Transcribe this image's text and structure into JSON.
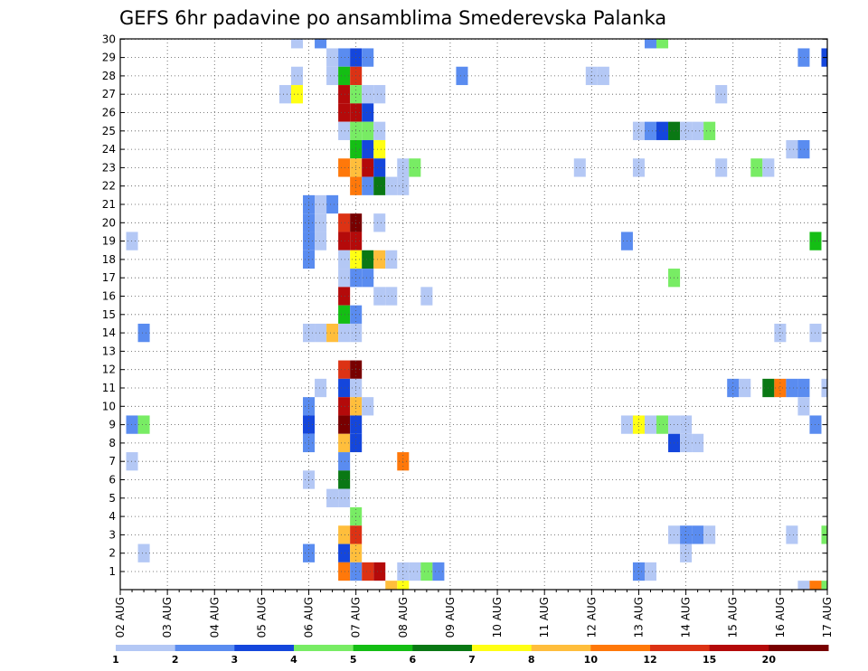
{
  "chart_data": {
    "type": "heatmap",
    "title": "GEFS 6hr padavine po ansamblima Smederevska Palanka",
    "x_tick_labels": [
      "02 AUG",
      "03 AUG",
      "04 AUG",
      "05 AUG",
      "06 AUG",
      "07 AUG",
      "08 AUG",
      "09 AUG",
      "10 AUG",
      "11 AUG",
      "12 AUG",
      "13 AUG",
      "14 AUG",
      "15 AUG",
      "16 AUG",
      "17 AUG"
    ],
    "y_tick_labels": [
      "1",
      "2",
      "3",
      "4",
      "5",
      "6",
      "7",
      "8",
      "9",
      "10",
      "11",
      "12",
      "13",
      "14",
      "15",
      "16",
      "17",
      "18",
      "19",
      "20",
      "21",
      "22",
      "23",
      "24",
      "25",
      "26",
      "27",
      "28",
      "29",
      "30"
    ],
    "xlim": [
      0,
      60
    ],
    "ylim": [
      0,
      30
    ],
    "steps_per_day": 4,
    "grid": true,
    "colorbar": {
      "position": "bottom",
      "labels": [
        "1",
        "2",
        "3",
        "4",
        "5",
        "6",
        "7",
        "8",
        "10",
        "12",
        "15",
        "20"
      ],
      "colors": [
        "#b4c8f5",
        "#5a8cf0",
        "#1446dc",
        "#78ec64",
        "#14be14",
        "#0a7814",
        "#ffff14",
        "#ffbe3c",
        "#ff780a",
        "#dc3214",
        "#b40a0a",
        "#780000"
      ]
    },
    "cells_note": "x = 6-hour step index from 02 AUG 00Z, y = ensemble member (0 = control row), c = colour class index",
    "cells": [
      {
        "x": 15,
        "y": 30,
        "c": 0
      },
      {
        "x": 17,
        "y": 30,
        "c": 1
      },
      {
        "x": 45,
        "y": 30,
        "c": 1
      },
      {
        "x": 46,
        "y": 30,
        "c": 3
      },
      {
        "x": 18,
        "y": 29,
        "c": 0
      },
      {
        "x": 19,
        "y": 29,
        "c": 1
      },
      {
        "x": 20,
        "y": 29,
        "c": 2
      },
      {
        "x": 21,
        "y": 29,
        "c": 1
      },
      {
        "x": 58,
        "y": 29,
        "c": 1
      },
      {
        "x": 60,
        "y": 29,
        "c": 2
      },
      {
        "x": 15,
        "y": 28,
        "c": 0
      },
      {
        "x": 18,
        "y": 28,
        "c": 0
      },
      {
        "x": 19,
        "y": 28,
        "c": 4
      },
      {
        "x": 20,
        "y": 28,
        "c": 9
      },
      {
        "x": 29,
        "y": 28,
        "c": 1
      },
      {
        "x": 40,
        "y": 28,
        "c": 0
      },
      {
        "x": 41,
        "y": 28,
        "c": 0
      },
      {
        "x": 14,
        "y": 27,
        "c": 0
      },
      {
        "x": 15,
        "y": 27,
        "c": 6
      },
      {
        "x": 19,
        "y": 27,
        "c": 10
      },
      {
        "x": 20,
        "y": 27,
        "c": 3
      },
      {
        "x": 21,
        "y": 27,
        "c": 0
      },
      {
        "x": 22,
        "y": 27,
        "c": 0
      },
      {
        "x": 51,
        "y": 27,
        "c": 0
      },
      {
        "x": 19,
        "y": 26,
        "c": 10
      },
      {
        "x": 20,
        "y": 26,
        "c": 10
      },
      {
        "x": 21,
        "y": 26,
        "c": 2
      },
      {
        "x": 19,
        "y": 25,
        "c": 0
      },
      {
        "x": 20,
        "y": 25,
        "c": 3
      },
      {
        "x": 21,
        "y": 25,
        "c": 3
      },
      {
        "x": 22,
        "y": 25,
        "c": 0
      },
      {
        "x": 44,
        "y": 25,
        "c": 0
      },
      {
        "x": 45,
        "y": 25,
        "c": 1
      },
      {
        "x": 46,
        "y": 25,
        "c": 2
      },
      {
        "x": 47,
        "y": 25,
        "c": 5
      },
      {
        "x": 48,
        "y": 25,
        "c": 0
      },
      {
        "x": 49,
        "y": 25,
        "c": 0
      },
      {
        "x": 50,
        "y": 25,
        "c": 3
      },
      {
        "x": 20,
        "y": 24,
        "c": 4
      },
      {
        "x": 21,
        "y": 24,
        "c": 2
      },
      {
        "x": 22,
        "y": 24,
        "c": 6
      },
      {
        "x": 57,
        "y": 24,
        "c": 0
      },
      {
        "x": 58,
        "y": 24,
        "c": 1
      },
      {
        "x": 19,
        "y": 23,
        "c": 8
      },
      {
        "x": 20,
        "y": 23,
        "c": 7
      },
      {
        "x": 21,
        "y": 23,
        "c": 10
      },
      {
        "x": 22,
        "y": 23,
        "c": 2
      },
      {
        "x": 24,
        "y": 23,
        "c": 0
      },
      {
        "x": 25,
        "y": 23,
        "c": 3
      },
      {
        "x": 39,
        "y": 23,
        "c": 0
      },
      {
        "x": 44,
        "y": 23,
        "c": 0
      },
      {
        "x": 51,
        "y": 23,
        "c": 0
      },
      {
        "x": 54,
        "y": 23,
        "c": 3
      },
      {
        "x": 55,
        "y": 23,
        "c": 0
      },
      {
        "x": 20,
        "y": 22,
        "c": 8
      },
      {
        "x": 21,
        "y": 22,
        "c": 1
      },
      {
        "x": 22,
        "y": 22,
        "c": 5
      },
      {
        "x": 23,
        "y": 22,
        "c": 0
      },
      {
        "x": 24,
        "y": 22,
        "c": 0
      },
      {
        "x": 16,
        "y": 21,
        "c": 1
      },
      {
        "x": 17,
        "y": 21,
        "c": 0
      },
      {
        "x": 18,
        "y": 21,
        "c": 1
      },
      {
        "x": 16,
        "y": 20,
        "c": 1
      },
      {
        "x": 17,
        "y": 20,
        "c": 0
      },
      {
        "x": 19,
        "y": 20,
        "c": 9
      },
      {
        "x": 20,
        "y": 20,
        "c": 11
      },
      {
        "x": 22,
        "y": 20,
        "c": 0
      },
      {
        "x": 1,
        "y": 19,
        "c": 0
      },
      {
        "x": 16,
        "y": 19,
        "c": 1
      },
      {
        "x": 17,
        "y": 19,
        "c": 0
      },
      {
        "x": 19,
        "y": 19,
        "c": 10
      },
      {
        "x": 20,
        "y": 19,
        "c": 10
      },
      {
        "x": 43,
        "y": 19,
        "c": 1
      },
      {
        "x": 59,
        "y": 19,
        "c": 4
      },
      {
        "x": 16,
        "y": 18,
        "c": 1
      },
      {
        "x": 19,
        "y": 18,
        "c": 0
      },
      {
        "x": 20,
        "y": 18,
        "c": 6
      },
      {
        "x": 21,
        "y": 18,
        "c": 5
      },
      {
        "x": 22,
        "y": 18,
        "c": 7
      },
      {
        "x": 23,
        "y": 18,
        "c": 0
      },
      {
        "x": 19,
        "y": 17,
        "c": 0
      },
      {
        "x": 20,
        "y": 17,
        "c": 1
      },
      {
        "x": 21,
        "y": 17,
        "c": 1
      },
      {
        "x": 47,
        "y": 17,
        "c": 3
      },
      {
        "x": 19,
        "y": 16,
        "c": 10
      },
      {
        "x": 22,
        "y": 16,
        "c": 0
      },
      {
        "x": 23,
        "y": 16,
        "c": 0
      },
      {
        "x": 26,
        "y": 16,
        "c": 0
      },
      {
        "x": 19,
        "y": 15,
        "c": 4
      },
      {
        "x": 20,
        "y": 15,
        "c": 1
      },
      {
        "x": 2,
        "y": 14,
        "c": 1
      },
      {
        "x": 16,
        "y": 14,
        "c": 0
      },
      {
        "x": 17,
        "y": 14,
        "c": 0
      },
      {
        "x": 18,
        "y": 14,
        "c": 7
      },
      {
        "x": 19,
        "y": 14,
        "c": 0
      },
      {
        "x": 20,
        "y": 14,
        "c": 0
      },
      {
        "x": 56,
        "y": 14,
        "c": 0
      },
      {
        "x": 59,
        "y": 14,
        "c": 0
      },
      {
        "x": 19,
        "y": 12,
        "c": 9
      },
      {
        "x": 20,
        "y": 12,
        "c": 11
      },
      {
        "x": 17,
        "y": 11,
        "c": 0
      },
      {
        "x": 19,
        "y": 11,
        "c": 2
      },
      {
        "x": 20,
        "y": 11,
        "c": 0
      },
      {
        "x": 52,
        "y": 11,
        "c": 1
      },
      {
        "x": 53,
        "y": 11,
        "c": 0
      },
      {
        "x": 55,
        "y": 11,
        "c": 5
      },
      {
        "x": 56,
        "y": 11,
        "c": 8
      },
      {
        "x": 57,
        "y": 11,
        "c": 1
      },
      {
        "x": 58,
        "y": 11,
        "c": 1
      },
      {
        "x": 60,
        "y": 11,
        "c": 0
      },
      {
        "x": 16,
        "y": 10,
        "c": 1
      },
      {
        "x": 19,
        "y": 10,
        "c": 10
      },
      {
        "x": 20,
        "y": 10,
        "c": 7
      },
      {
        "x": 21,
        "y": 10,
        "c": 0
      },
      {
        "x": 58,
        "y": 10,
        "c": 0
      },
      {
        "x": 1,
        "y": 9,
        "c": 1
      },
      {
        "x": 2,
        "y": 9,
        "c": 3
      },
      {
        "x": 16,
        "y": 9,
        "c": 2
      },
      {
        "x": 19,
        "y": 9,
        "c": 11
      },
      {
        "x": 20,
        "y": 9,
        "c": 2
      },
      {
        "x": 43,
        "y": 9,
        "c": 0
      },
      {
        "x": 44,
        "y": 9,
        "c": 6
      },
      {
        "x": 45,
        "y": 9,
        "c": 0
      },
      {
        "x": 46,
        "y": 9,
        "c": 3
      },
      {
        "x": 47,
        "y": 9,
        "c": 0
      },
      {
        "x": 48,
        "y": 9,
        "c": 0
      },
      {
        "x": 59,
        "y": 9,
        "c": 1
      },
      {
        "x": 16,
        "y": 8,
        "c": 1
      },
      {
        "x": 19,
        "y": 8,
        "c": 7
      },
      {
        "x": 20,
        "y": 8,
        "c": 2
      },
      {
        "x": 47,
        "y": 8,
        "c": 2
      },
      {
        "x": 48,
        "y": 8,
        "c": 0
      },
      {
        "x": 49,
        "y": 8,
        "c": 0
      },
      {
        "x": 1,
        "y": 7,
        "c": 0
      },
      {
        "x": 19,
        "y": 7,
        "c": 1
      },
      {
        "x": 24,
        "y": 7,
        "c": 8
      },
      {
        "x": 16,
        "y": 6,
        "c": 0
      },
      {
        "x": 19,
        "y": 6,
        "c": 5
      },
      {
        "x": 18,
        "y": 5,
        "c": 0
      },
      {
        "x": 19,
        "y": 5,
        "c": 0
      },
      {
        "x": 20,
        "y": 4,
        "c": 3
      },
      {
        "x": 19,
        "y": 3,
        "c": 7
      },
      {
        "x": 20,
        "y": 3,
        "c": 9
      },
      {
        "x": 47,
        "y": 3,
        "c": 0
      },
      {
        "x": 48,
        "y": 3,
        "c": 1
      },
      {
        "x": 49,
        "y": 3,
        "c": 1
      },
      {
        "x": 50,
        "y": 3,
        "c": 0
      },
      {
        "x": 57,
        "y": 3,
        "c": 0
      },
      {
        "x": 60,
        "y": 3,
        "c": 3
      },
      {
        "x": 2,
        "y": 2,
        "c": 0
      },
      {
        "x": 16,
        "y": 2,
        "c": 1
      },
      {
        "x": 19,
        "y": 2,
        "c": 2
      },
      {
        "x": 20,
        "y": 2,
        "c": 7
      },
      {
        "x": 48,
        "y": 2,
        "c": 0
      },
      {
        "x": 19,
        "y": 1,
        "c": 8
      },
      {
        "x": 20,
        "y": 1,
        "c": 1
      },
      {
        "x": 21,
        "y": 1,
        "c": 9
      },
      {
        "x": 22,
        "y": 1,
        "c": 10
      },
      {
        "x": 24,
        "y": 1,
        "c": 0
      },
      {
        "x": 25,
        "y": 1,
        "c": 0
      },
      {
        "x": 26,
        "y": 1,
        "c": 3
      },
      {
        "x": 27,
        "y": 1,
        "c": 1
      },
      {
        "x": 44,
        "y": 1,
        "c": 1
      },
      {
        "x": 45,
        "y": 1,
        "c": 0
      },
      {
        "x": 23,
        "y": 0,
        "c": 7
      },
      {
        "x": 24,
        "y": 0,
        "c": 6
      },
      {
        "x": 58,
        "y": 0,
        "c": 0
      },
      {
        "x": 59,
        "y": 0,
        "c": 8
      },
      {
        "x": 60,
        "y": 0,
        "c": 3
      }
    ]
  }
}
